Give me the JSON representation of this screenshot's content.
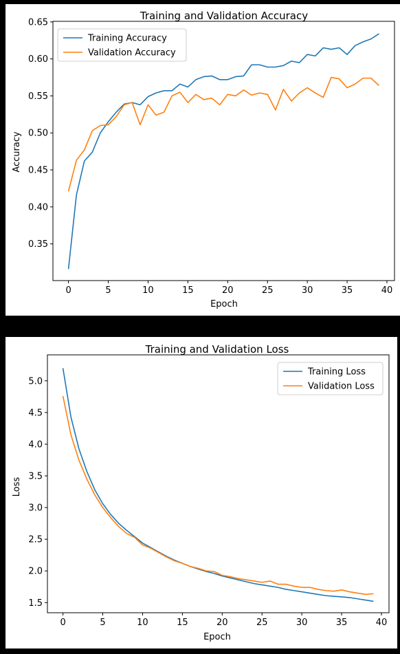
{
  "chart_data": [
    {
      "type": "line",
      "title": "Training and Validation Accuracy",
      "xlabel": "Epoch",
      "ylabel": "Accuracy",
      "xlim": [
        -1.95,
        40.95
      ],
      "ylim": [
        0.3004,
        0.6508
      ],
      "xticks": [
        0,
        5,
        10,
        15,
        20,
        25,
        30,
        35,
        40
      ],
      "yticks": [
        0.35,
        0.4,
        0.45,
        0.5,
        0.55,
        0.6,
        0.65
      ],
      "ytick_labels": [
        "0.35",
        "0.40",
        "0.45",
        "0.50",
        "0.55",
        "0.60",
        "0.65"
      ],
      "legend_position": "upper-left",
      "x": [
        0,
        1,
        2,
        3,
        4,
        5,
        6,
        7,
        8,
        9,
        10,
        11,
        12,
        13,
        14,
        15,
        16,
        17,
        18,
        19,
        20,
        21,
        22,
        23,
        24,
        25,
        26,
        27,
        28,
        29,
        30,
        31,
        32,
        33,
        34,
        35,
        36,
        37,
        38,
        39
      ],
      "series": [
        {
          "name": "Training Accuracy",
          "color": "#1f77b4",
          "values": [
            0.316,
            0.416,
            0.462,
            0.474,
            0.5,
            0.515,
            0.528,
            0.539,
            0.541,
            0.538,
            0.549,
            0.554,
            0.557,
            0.557,
            0.566,
            0.562,
            0.572,
            0.576,
            0.577,
            0.572,
            0.572,
            0.576,
            0.577,
            0.592,
            0.592,
            0.589,
            0.589,
            0.591,
            0.597,
            0.595,
            0.606,
            0.604,
            0.615,
            0.613,
            0.615,
            0.606,
            0.618,
            0.623,
            0.627,
            0.634
          ]
        },
        {
          "name": "Validation Accuracy",
          "color": "#ff7f0e",
          "values": [
            0.421,
            0.463,
            0.477,
            0.503,
            0.51,
            0.511,
            0.522,
            0.538,
            0.541,
            0.511,
            0.538,
            0.524,
            0.528,
            0.55,
            0.555,
            0.541,
            0.552,
            0.545,
            0.547,
            0.538,
            0.552,
            0.55,
            0.558,
            0.551,
            0.554,
            0.552,
            0.531,
            0.559,
            0.543,
            0.554,
            0.561,
            0.554,
            0.548,
            0.575,
            0.573,
            0.561,
            0.566,
            0.574,
            0.574,
            0.564
          ]
        }
      ]
    },
    {
      "type": "line",
      "title": "Training and Validation Loss",
      "xlabel": "Epoch",
      "ylabel": "Loss",
      "xlim": [
        -1.95,
        40.95
      ],
      "ylim": [
        1.34,
        5.41
      ],
      "xticks": [
        0,
        5,
        10,
        15,
        20,
        25,
        30,
        35,
        40
      ],
      "yticks": [
        1.5,
        2.0,
        2.5,
        3.0,
        3.5,
        4.0,
        4.5,
        5.0
      ],
      "ytick_labels": [
        "1.5",
        "2.0",
        "2.5",
        "3.0",
        "3.5",
        "4.0",
        "4.5",
        "5.0"
      ],
      "legend_position": "upper-right",
      "x": [
        0,
        1,
        2,
        3,
        4,
        5,
        6,
        7,
        8,
        9,
        10,
        11,
        12,
        13,
        14,
        15,
        16,
        17,
        18,
        19,
        20,
        21,
        22,
        23,
        24,
        25,
        26,
        27,
        28,
        29,
        30,
        31,
        32,
        33,
        34,
        35,
        36,
        37,
        38,
        39
      ],
      "series": [
        {
          "name": "Training Loss",
          "color": "#1f77b4",
          "values": [
            5.2,
            4.43,
            3.93,
            3.57,
            3.28,
            3.06,
            2.89,
            2.75,
            2.64,
            2.54,
            2.44,
            2.37,
            2.3,
            2.23,
            2.17,
            2.12,
            2.07,
            2.03,
            1.99,
            1.96,
            1.92,
            1.89,
            1.86,
            1.83,
            1.8,
            1.78,
            1.76,
            1.74,
            1.71,
            1.69,
            1.67,
            1.65,
            1.63,
            1.61,
            1.6,
            1.59,
            1.58,
            1.56,
            1.54,
            1.52
          ]
        },
        {
          "name": "Validation Loss",
          "color": "#ff7f0e",
          "values": [
            4.76,
            4.15,
            3.75,
            3.45,
            3.2,
            3.0,
            2.84,
            2.7,
            2.59,
            2.53,
            2.41,
            2.36,
            2.29,
            2.22,
            2.16,
            2.12,
            2.07,
            2.04,
            2.0,
            1.99,
            1.93,
            1.91,
            1.88,
            1.86,
            1.84,
            1.82,
            1.84,
            1.79,
            1.79,
            1.76,
            1.74,
            1.74,
            1.71,
            1.69,
            1.68,
            1.7,
            1.67,
            1.65,
            1.63,
            1.64
          ]
        }
      ]
    }
  ]
}
